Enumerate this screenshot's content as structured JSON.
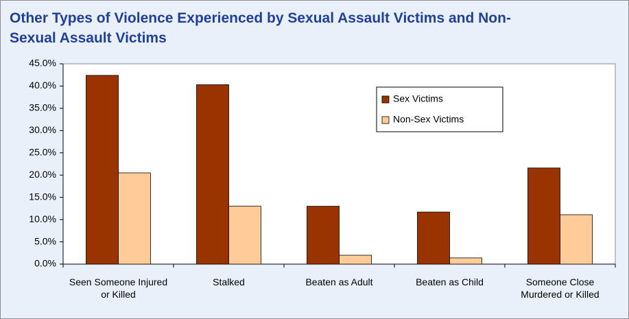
{
  "chart_data": {
    "type": "bar",
    "title": "Other Types of Violence Experienced by Sexual Assault Victims and Non-Sexual Assault Victims",
    "categories": [
      "Seen Someone Injured or Killed",
      "Stalked",
      "Beaten as Adult",
      "Beaten as Child",
      "Someone Close Murdered or Killed"
    ],
    "series": [
      {
        "name": "Sex Victims",
        "color": "#993300",
        "values": [
          42.4,
          40.3,
          13.0,
          11.7,
          21.6
        ]
      },
      {
        "name": "Non-Sex Victims",
        "color": "#ffcc99",
        "values": [
          20.5,
          13.0,
          2.0,
          1.4,
          11.1
        ]
      }
    ],
    "ylim": [
      0,
      45
    ],
    "yticks": [
      {
        "value": 0,
        "label": "0.0%"
      },
      {
        "value": 5,
        "label": "5.0%"
      },
      {
        "value": 10,
        "label": "10.0%"
      },
      {
        "value": 15,
        "label": "15.0%"
      },
      {
        "value": 20,
        "label": "20.0%"
      },
      {
        "value": 25,
        "label": "25.0%"
      },
      {
        "value": 30,
        "label": "30.0%"
      },
      {
        "value": 35,
        "label": "35.0%"
      },
      {
        "value": 40,
        "label": "40.0%"
      },
      {
        "value": 45,
        "label": "45.0%"
      }
    ],
    "grid": false,
    "legend": "upper-right"
  }
}
